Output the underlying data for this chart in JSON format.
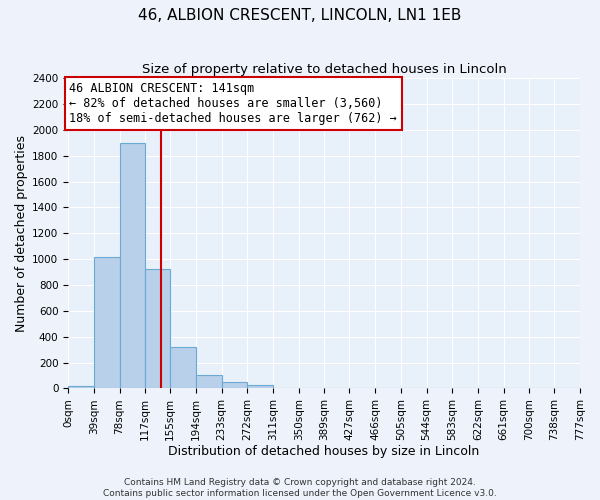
{
  "title": "46, ALBION CRESCENT, LINCOLN, LN1 1EB",
  "subtitle": "Size of property relative to detached houses in Lincoln",
  "xlabel": "Distribution of detached houses by size in Lincoln",
  "ylabel": "Number of detached properties",
  "bin_edges": [
    0,
    39,
    78,
    117,
    155,
    194,
    233,
    272,
    311,
    350,
    389,
    427,
    466,
    505,
    544,
    583,
    622,
    661,
    700,
    738,
    777
  ],
  "bin_labels": [
    "0sqm",
    "39sqm",
    "78sqm",
    "117sqm",
    "155sqm",
    "194sqm",
    "233sqm",
    "272sqm",
    "311sqm",
    "350sqm",
    "389sqm",
    "427sqm",
    "466sqm",
    "505sqm",
    "544sqm",
    "583sqm",
    "622sqm",
    "661sqm",
    "700sqm",
    "738sqm",
    "777sqm"
  ],
  "counts": [
    20,
    1020,
    1900,
    920,
    320,
    105,
    50,
    30,
    0,
    0,
    0,
    0,
    0,
    0,
    0,
    0,
    0,
    0,
    0,
    0
  ],
  "bar_color": "#b8d0ea",
  "bar_edge_color": "#6aaad4",
  "vline_x": 141,
  "vline_color": "#cc0000",
  "annotation_title": "46 ALBION CRESCENT: 141sqm",
  "annotation_line1": "← 82% of detached houses are smaller (3,560)",
  "annotation_line2": "18% of semi-detached houses are larger (762) →",
  "annotation_box_color": "#ffffff",
  "annotation_box_edge_color": "#cc0000",
  "ylim": [
    0,
    2400
  ],
  "yticks": [
    0,
    200,
    400,
    600,
    800,
    1000,
    1200,
    1400,
    1600,
    1800,
    2000,
    2200,
    2400
  ],
  "footer_line1": "Contains HM Land Registry data © Crown copyright and database right 2024.",
  "footer_line2": "Contains public sector information licensed under the Open Government Licence v3.0.",
  "fig_bg_color": "#eef3fb",
  "plot_bg_color": "#e8f0fa",
  "grid_color": "#ffffff",
  "title_fontsize": 11,
  "subtitle_fontsize": 9.5,
  "axis_label_fontsize": 9,
  "tick_fontsize": 7.5,
  "annotation_fontsize": 8.5,
  "footer_fontsize": 6.5
}
